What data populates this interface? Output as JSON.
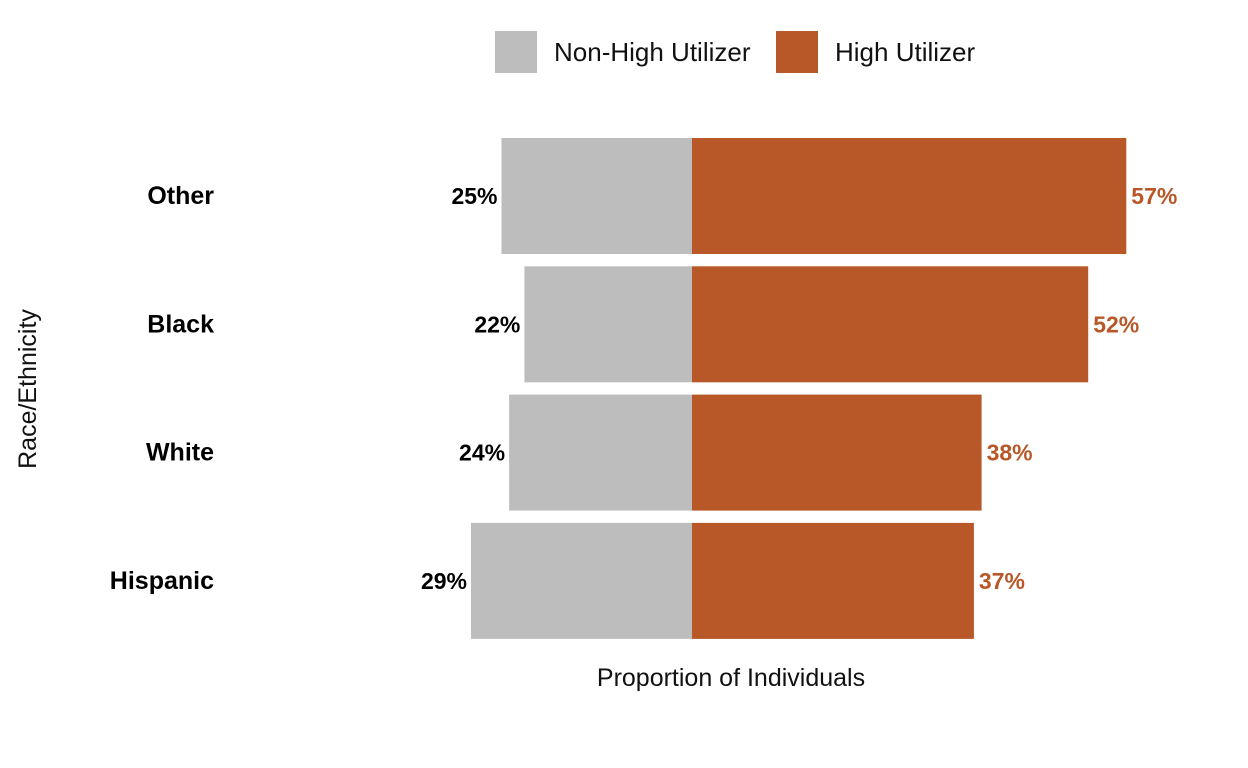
{
  "chart_data": {
    "type": "bar",
    "orientation": "horizontal-diverging",
    "categories": [
      "Other",
      "Black",
      "White",
      "Hispanic"
    ],
    "series": [
      {
        "name": "Non-High Utilizer",
        "values": [
          25,
          22,
          24,
          29
        ],
        "labels": [
          "25%",
          "22%",
          "24%",
          "29%"
        ],
        "color": "#bdbdbd",
        "label_color": "#000000",
        "side": "left"
      },
      {
        "name": "High Utilizer",
        "values": [
          57,
          52,
          38,
          37
        ],
        "labels": [
          "57%",
          "52%",
          "38%",
          "37%"
        ],
        "color": "#b85728",
        "label_color": "#b85728",
        "side": "right"
      }
    ],
    "xlabel": "Proportion of Individuals",
    "ylabel": "Race/Ethnicity",
    "unit": "%",
    "legend_position": "top",
    "grid": false
  }
}
